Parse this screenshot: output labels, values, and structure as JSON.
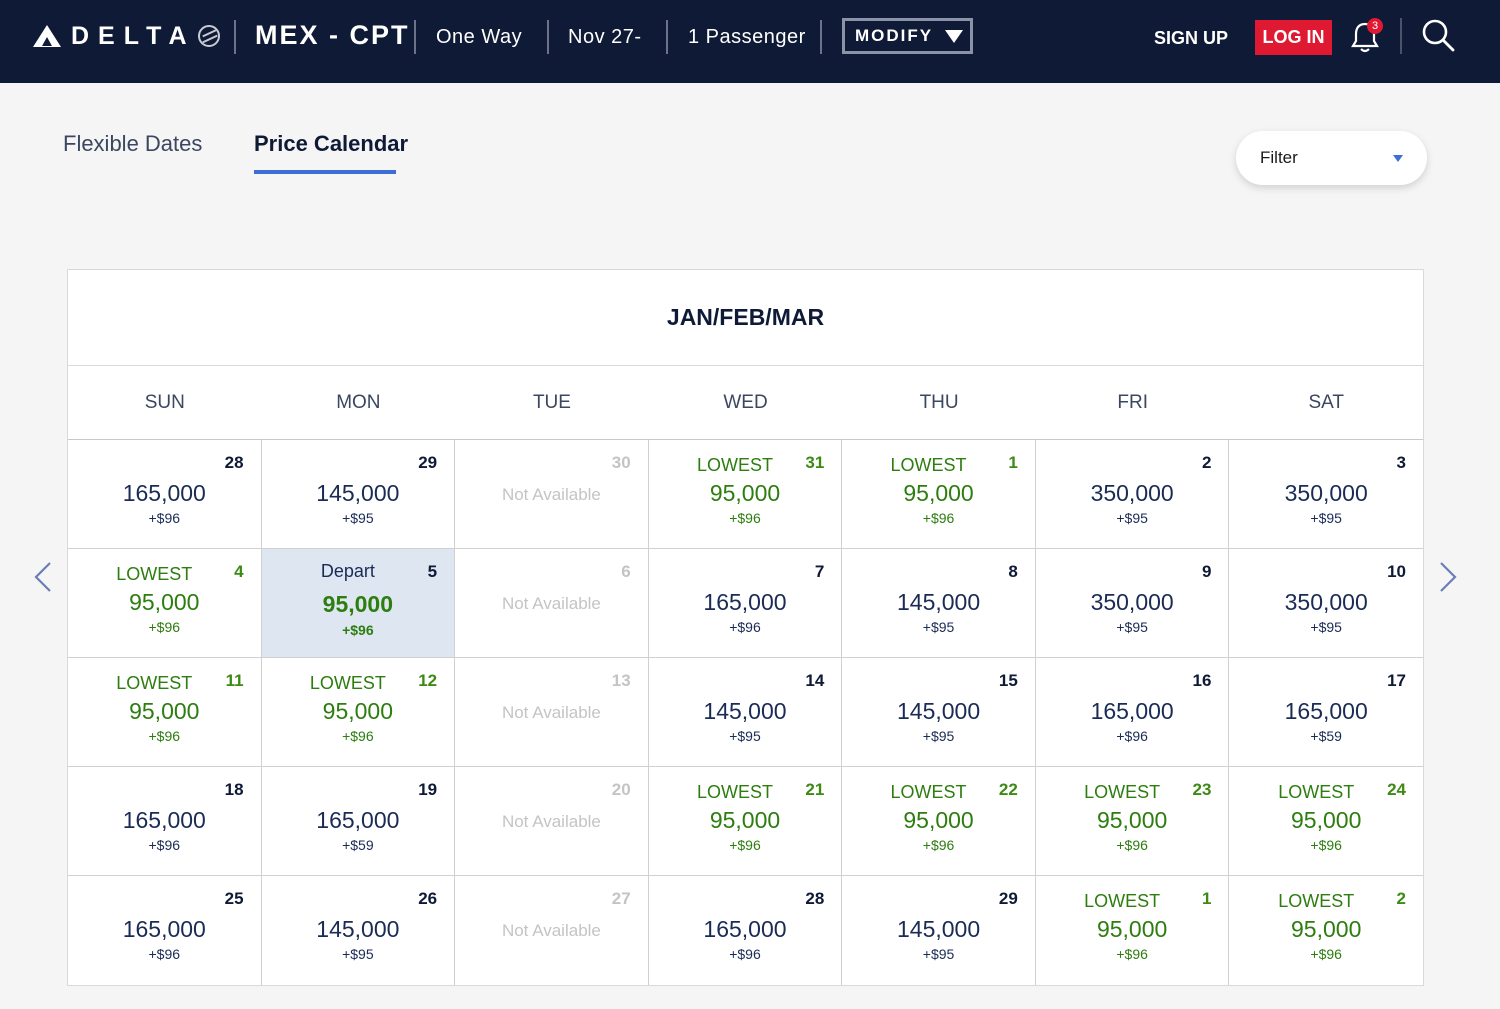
{
  "header": {
    "brand": "DELTA",
    "route": "MEX - CPT",
    "trip_type": "One Way",
    "dates": "Nov 27-",
    "passengers": "1 Passenger",
    "modify_label": "MODIFY",
    "signup_label": "SIGN UP",
    "login_label": "LOG IN",
    "notification_count": "3"
  },
  "tabs": {
    "flexible": "Flexible Dates",
    "price": "Price Calendar"
  },
  "filter": {
    "label": "Filter"
  },
  "calendar": {
    "title": "JAN/FEB/MAR",
    "weekdays": [
      "SUN",
      "MON",
      "TUE",
      "WED",
      "THU",
      "FRI",
      "SAT"
    ],
    "not_available_label": "Not Available",
    "lowest_label": "LOWEST",
    "depart_label": "Depart",
    "days": [
      {
        "day": "28",
        "miles": "165,000",
        "fee": "+$96",
        "status": "normal"
      },
      {
        "day": "29",
        "miles": "145,000",
        "fee": "+$95",
        "status": "normal"
      },
      {
        "day": "30",
        "status": "na"
      },
      {
        "day": "31",
        "miles": "95,000",
        "fee": "+$96",
        "status": "lowest"
      },
      {
        "day": "1",
        "miles": "95,000",
        "fee": "+$96",
        "status": "lowest"
      },
      {
        "day": "2",
        "miles": "350,000",
        "fee": "+$95",
        "status": "normal"
      },
      {
        "day": "3",
        "miles": "350,000",
        "fee": "+$95",
        "status": "normal"
      },
      {
        "day": "4",
        "miles": "95,000",
        "fee": "+$96",
        "status": "lowest"
      },
      {
        "day": "5",
        "miles": "95,000",
        "fee": "+$96",
        "status": "selected"
      },
      {
        "day": "6",
        "status": "na"
      },
      {
        "day": "7",
        "miles": "165,000",
        "fee": "+$96",
        "status": "normal"
      },
      {
        "day": "8",
        "miles": "145,000",
        "fee": "+$95",
        "status": "normal"
      },
      {
        "day": "9",
        "miles": "350,000",
        "fee": "+$95",
        "status": "normal"
      },
      {
        "day": "10",
        "miles": "350,000",
        "fee": "+$95",
        "status": "normal"
      },
      {
        "day": "11",
        "miles": "95,000",
        "fee": "+$96",
        "status": "lowest"
      },
      {
        "day": "12",
        "miles": "95,000",
        "fee": "+$96",
        "status": "lowest"
      },
      {
        "day": "13",
        "status": "na"
      },
      {
        "day": "14",
        "miles": "145,000",
        "fee": "+$95",
        "status": "normal"
      },
      {
        "day": "15",
        "miles": "145,000",
        "fee": "+$95",
        "status": "normal"
      },
      {
        "day": "16",
        "miles": "165,000",
        "fee": "+$96",
        "status": "normal"
      },
      {
        "day": "17",
        "miles": "165,000",
        "fee": "+$59",
        "status": "normal"
      },
      {
        "day": "18",
        "miles": "165,000",
        "fee": "+$96",
        "status": "normal"
      },
      {
        "day": "19",
        "miles": "165,000",
        "fee": "+$59",
        "status": "normal"
      },
      {
        "day": "20",
        "status": "na"
      },
      {
        "day": "21",
        "miles": "95,000",
        "fee": "+$96",
        "status": "lowest"
      },
      {
        "day": "22",
        "miles": "95,000",
        "fee": "+$96",
        "status": "lowest"
      },
      {
        "day": "23",
        "miles": "95,000",
        "fee": "+$96",
        "status": "lowest"
      },
      {
        "day": "24",
        "miles": "95,000",
        "fee": "+$96",
        "status": "lowest"
      },
      {
        "day": "25",
        "miles": "165,000",
        "fee": "+$96",
        "status": "normal"
      },
      {
        "day": "26",
        "miles": "145,000",
        "fee": "+$95",
        "status": "normal"
      },
      {
        "day": "27",
        "status": "na"
      },
      {
        "day": "28",
        "miles": "165,000",
        "fee": "+$96",
        "status": "normal"
      },
      {
        "day": "29",
        "miles": "145,000",
        "fee": "+$95",
        "status": "normal"
      },
      {
        "day": "1",
        "miles": "95,000",
        "fee": "+$96",
        "status": "lowest"
      },
      {
        "day": "2",
        "miles": "95,000",
        "fee": "+$96",
        "status": "lowest"
      }
    ]
  },
  "colors": {
    "navy": "#0f1a36",
    "login_red": "#e01933",
    "lowest_green": "#2d7d0f",
    "selected_bg": "#dde6f1",
    "accent_blue": "#3d6ed6"
  }
}
